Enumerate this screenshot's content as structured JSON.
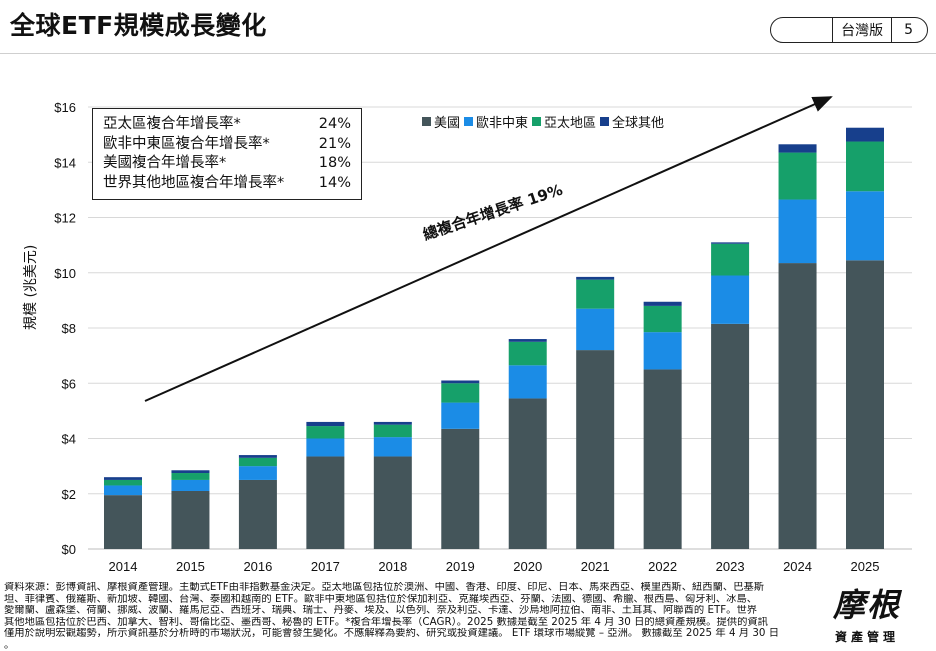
{
  "header": {
    "title": "全球ETF規模成長變化",
    "edition": "台灣版",
    "page_number": "5"
  },
  "cagr_box": {
    "rows": [
      {
        "label": "亞太區複合年增長率*",
        "value": "24%"
      },
      {
        "label": "歐非中東區複合年增長率*",
        "value": "21%"
      },
      {
        "label": "美國複合年增長率*",
        "value": "18%"
      },
      {
        "label": "世界其他地區複合年增長率*",
        "value": "14%"
      }
    ]
  },
  "trend_label": "總複合年增長率 19%",
  "colors": {
    "美國": "#44555a",
    "歐非中東": "#1b8ce6",
    "亞太地區": "#16a06a",
    "全球其他": "#173f8c",
    "grid": "#d8d8d8"
  },
  "chart_data": {
    "type": "bar",
    "stacked": true,
    "categories": [
      "2014",
      "2015",
      "2016",
      "2017",
      "2018",
      "2019",
      "2020",
      "2021",
      "2022",
      "2023",
      "2024",
      "2025"
    ],
    "series": [
      {
        "name": "美國",
        "values": [
          1.95,
          2.1,
          2.5,
          3.35,
          3.35,
          4.35,
          5.45,
          7.2,
          6.5,
          8.15,
          10.35,
          10.45
        ]
      },
      {
        "name": "歐非中東",
        "values": [
          0.35,
          0.4,
          0.5,
          0.65,
          0.7,
          0.95,
          1.2,
          1.5,
          1.35,
          1.75,
          2.3,
          2.5
        ]
      },
      {
        "name": "亞太地區",
        "values": [
          0.2,
          0.25,
          0.3,
          0.45,
          0.45,
          0.7,
          0.85,
          1.05,
          0.95,
          1.15,
          1.7,
          1.8
        ]
      },
      {
        "name": "全球其他",
        "values": [
          0.1,
          0.1,
          0.1,
          0.15,
          0.1,
          0.1,
          0.1,
          0.1,
          0.15,
          0.05,
          0.3,
          0.5
        ]
      }
    ],
    "ylabel": "規模 (兆美元)",
    "ylim": [
      0,
      16
    ],
    "yticks": [
      0,
      2,
      4,
      6,
      8,
      10,
      12,
      14,
      16
    ],
    "ytick_labels": [
      "$0",
      "$2",
      "$4",
      "$6",
      "$8",
      "$10",
      "$12",
      "$14",
      "$16"
    ],
    "grid": true,
    "legend_position": "top"
  },
  "footnote": {
    "lines": [
      "資料來源：彭博資訊、摩根資產管理。主動式ETF由非指數基金決定。亞太地區包括位於澳洲、中國、香港、印度、印尼、日本、馬來西亞、模里西斯、紐西蘭、巴基斯",
      "坦、菲律賓、俄羅斯、新加坡、韓國、台灣、泰國和越南的 ETF。歐非中東地區包括位於保加利亞、克羅埃西亞、芬蘭、法國、德國、希臘、根西島、匈牙利、冰島、",
      "愛爾蘭、盧森堡、荷蘭、挪威、波蘭、羅馬尼亞、西班牙、瑞典、瑞士、丹麥、埃及、以色列、奈及利亞、卡達、沙烏地阿拉伯、南非、土耳其、阿聯酋的 ETF。世界",
      "其他地區包括位於巴西、加拿大、智利、哥倫比亞、墨西哥、秘魯的 ETF。*複合年增長率（CAGR）。2025 數據是截至 2025 年 4 月 30 日的總資產規模。提供的資訊",
      "僅用於說明宏觀趨勢，所示資訊基於分析時的市場狀況，可能會發生變化。不應解釋為要約、研究或投資建議。 ETF 環球市場縱覽 – 亞洲。 數據截至 2025 年 4 月 30 日",
      "。"
    ]
  },
  "logo": {
    "mark": "摩根",
    "sub": "資產管理"
  }
}
